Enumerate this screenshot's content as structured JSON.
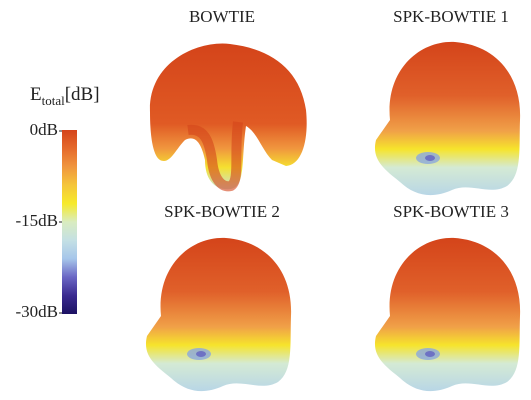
{
  "colorbar": {
    "title": "E",
    "title_sub": "total",
    "title_unit": "[dB]",
    "lim": [
      -30,
      0
    ],
    "ticks": [
      {
        "value": 0,
        "label": "0dB"
      },
      {
        "value": -15,
        "label": "-15dB"
      },
      {
        "value": -30,
        "label": "-30dB"
      }
    ],
    "colors": [
      "#d4441a",
      "#e56a2c",
      "#f0963e",
      "#f5c63a",
      "#f6ea2a",
      "#d9ecc0",
      "#c4e0e4",
      "#a6c6ea",
      "#6a66c4",
      "#3a2a90",
      "#1c1262"
    ]
  },
  "panels": [
    {
      "title": "BOWTIE"
    },
    {
      "title": "SPK-BOWTIE 1"
    },
    {
      "title": "SPK-BOWTIE 2"
    },
    {
      "title": "SPK-BOWTIE 3"
    }
  ]
}
